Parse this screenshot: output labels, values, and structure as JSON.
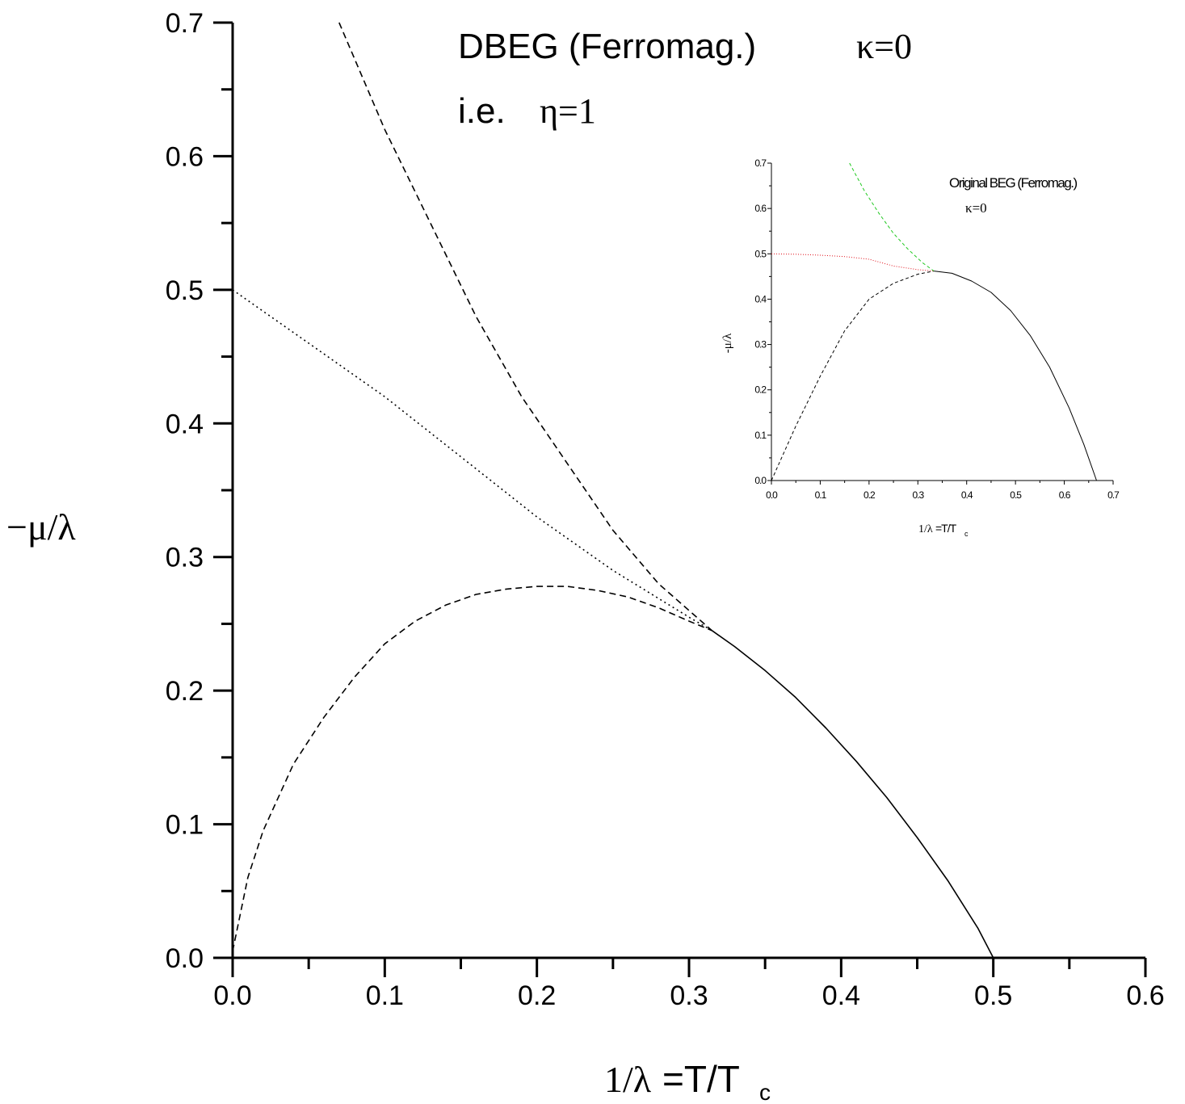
{
  "colors": {
    "axis": "#000000",
    "inset_red": "#e0101a",
    "inset_green": "#1ec81e"
  },
  "chart_data": [
    {
      "type": "line",
      "title_line1": "DBEG (Ferromag.)",
      "title_kappa": "κ=0",
      "title_line2_prefix": "i.e.",
      "title_eta": "η=1",
      "xlabel_prefix": "1/λ",
      "xlabel_main": "=T/T",
      "xlabel_sub": "c",
      "ylabel": "−μ/λ",
      "xlim": [
        0,
        0.6
      ],
      "ylim": [
        0,
        0.7
      ],
      "x_ticks": [
        "0.0",
        "0.1",
        "0.2",
        "0.3",
        "0.4",
        "0.5",
        "0.6"
      ],
      "y_ticks": [
        "0.0",
        "0.1",
        "0.2",
        "0.3",
        "0.4",
        "0.5",
        "0.6",
        "0.7"
      ],
      "series": [
        {
          "style": "dashed",
          "x": [
            0.0,
            0.01,
            0.02,
            0.04,
            0.06,
            0.08,
            0.1,
            0.12,
            0.14,
            0.16,
            0.18,
            0.2,
            0.22,
            0.24,
            0.26,
            0.28,
            0.3,
            0.315
          ],
          "y": [
            0.005,
            0.06,
            0.095,
            0.145,
            0.18,
            0.21,
            0.235,
            0.252,
            0.264,
            0.272,
            0.276,
            0.278,
            0.278,
            0.275,
            0.27,
            0.262,
            0.252,
            0.245
          ]
        },
        {
          "style": "dashed",
          "x": [
            0.07,
            0.1,
            0.13,
            0.16,
            0.19,
            0.22,
            0.25,
            0.28,
            0.31,
            0.315
          ],
          "y": [
            0.7,
            0.62,
            0.55,
            0.48,
            0.42,
            0.37,
            0.32,
            0.28,
            0.25,
            0.245
          ]
        },
        {
          "style": "dotted",
          "x": [
            0.0,
            0.05,
            0.1,
            0.15,
            0.2,
            0.25,
            0.3,
            0.315
          ],
          "y": [
            0.5,
            0.46,
            0.42,
            0.375,
            0.33,
            0.29,
            0.255,
            0.245
          ]
        },
        {
          "style": "solid",
          "x": [
            0.315,
            0.33,
            0.35,
            0.37,
            0.39,
            0.41,
            0.43,
            0.45,
            0.47,
            0.49,
            0.5
          ],
          "y": [
            0.245,
            0.233,
            0.215,
            0.195,
            0.172,
            0.147,
            0.12,
            0.09,
            0.058,
            0.022,
            0.0
          ]
        }
      ]
    },
    {
      "type": "line",
      "title": "Original BEG (Ferromag.)",
      "title_kappa": "κ=0",
      "xlabel_prefix": "1/λ",
      "xlabel_main": "=T/T",
      "xlabel_sub": "c",
      "ylabel": "-μ/λ",
      "xlim": [
        0,
        0.7
      ],
      "ylim": [
        0,
        0.7
      ],
      "x_ticks": [
        "0.0",
        "0.1",
        "0.2",
        "0.3",
        "0.4",
        "0.5",
        "0.6",
        "0.7"
      ],
      "y_ticks": [
        "0.0",
        "0.1",
        "0.2",
        "0.3",
        "0.4",
        "0.5",
        "0.6",
        "0.7"
      ],
      "series": [
        {
          "style": "dashed",
          "color_key": "axis",
          "x": [
            0.0,
            0.05,
            0.1,
            0.15,
            0.2,
            0.25,
            0.3,
            0.333
          ],
          "y": [
            0.0,
            0.12,
            0.23,
            0.33,
            0.4,
            0.435,
            0.455,
            0.462
          ]
        },
        {
          "style": "dotted",
          "color_key": "inset_red",
          "x": [
            0.0,
            0.05,
            0.1,
            0.15,
            0.2,
            0.25,
            0.3,
            0.333
          ],
          "y": [
            0.5,
            0.499,
            0.497,
            0.494,
            0.488,
            0.473,
            0.465,
            0.462
          ]
        },
        {
          "style": "dashed",
          "color_key": "inset_green",
          "x": [
            0.16,
            0.19,
            0.22,
            0.25,
            0.28,
            0.31,
            0.333
          ],
          "y": [
            0.7,
            0.64,
            0.59,
            0.545,
            0.51,
            0.48,
            0.462
          ]
        },
        {
          "style": "solid",
          "color_key": "axis",
          "x": [
            0.333,
            0.37,
            0.41,
            0.45,
            0.49,
            0.53,
            0.57,
            0.61,
            0.64,
            0.666
          ],
          "y": [
            0.462,
            0.457,
            0.44,
            0.415,
            0.375,
            0.32,
            0.25,
            0.16,
            0.08,
            0.0
          ]
        }
      ]
    }
  ]
}
